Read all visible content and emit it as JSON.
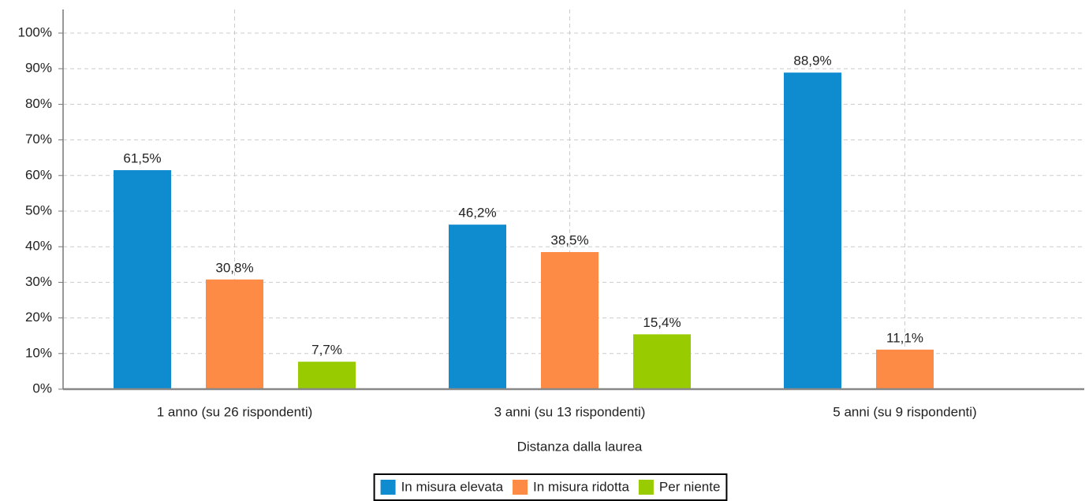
{
  "chart_data": {
    "type": "bar",
    "x_label": "Distanza dalla laurea",
    "categories": [
      "1 anno (su 26 rispondenti)",
      "3 anni (su 13 rispondenti)",
      "5 anni (su 9 rispondenti)"
    ],
    "series": [
      {
        "name": "In misura elevata",
        "color": "#0f8bd0",
        "values": [
          61.5,
          46.2,
          88.9
        ],
        "value_labels": [
          "61,5%",
          "46,2%",
          "88,9%"
        ]
      },
      {
        "name": "In misura ridotta",
        "color": "#fd8b45",
        "values": [
          30.8,
          38.5,
          11.1
        ],
        "value_labels": [
          "30,8%",
          "38,5%",
          "11,1%"
        ]
      },
      {
        "name": "Per niente",
        "color": "#99cc00",
        "values": [
          7.7,
          15.4,
          null
        ],
        "value_labels": [
          "7,7%",
          "15,4%",
          null
        ]
      }
    ],
    "ylim": [
      0,
      100
    ],
    "yticks": [
      {
        "value": 0,
        "label": "0%"
      },
      {
        "value": 10,
        "label": "10%"
      },
      {
        "value": 20,
        "label": "20%"
      },
      {
        "value": 30,
        "label": "30%"
      },
      {
        "value": 40,
        "label": "40%"
      },
      {
        "value": 50,
        "label": "50%"
      },
      {
        "value": 60,
        "label": "60%"
      },
      {
        "value": 70,
        "label": "70%"
      },
      {
        "value": 80,
        "label": "80%"
      },
      {
        "value": 90,
        "label": "90%"
      },
      {
        "value": 100,
        "label": "100%"
      }
    ],
    "grid": true,
    "legend": "bottom"
  }
}
